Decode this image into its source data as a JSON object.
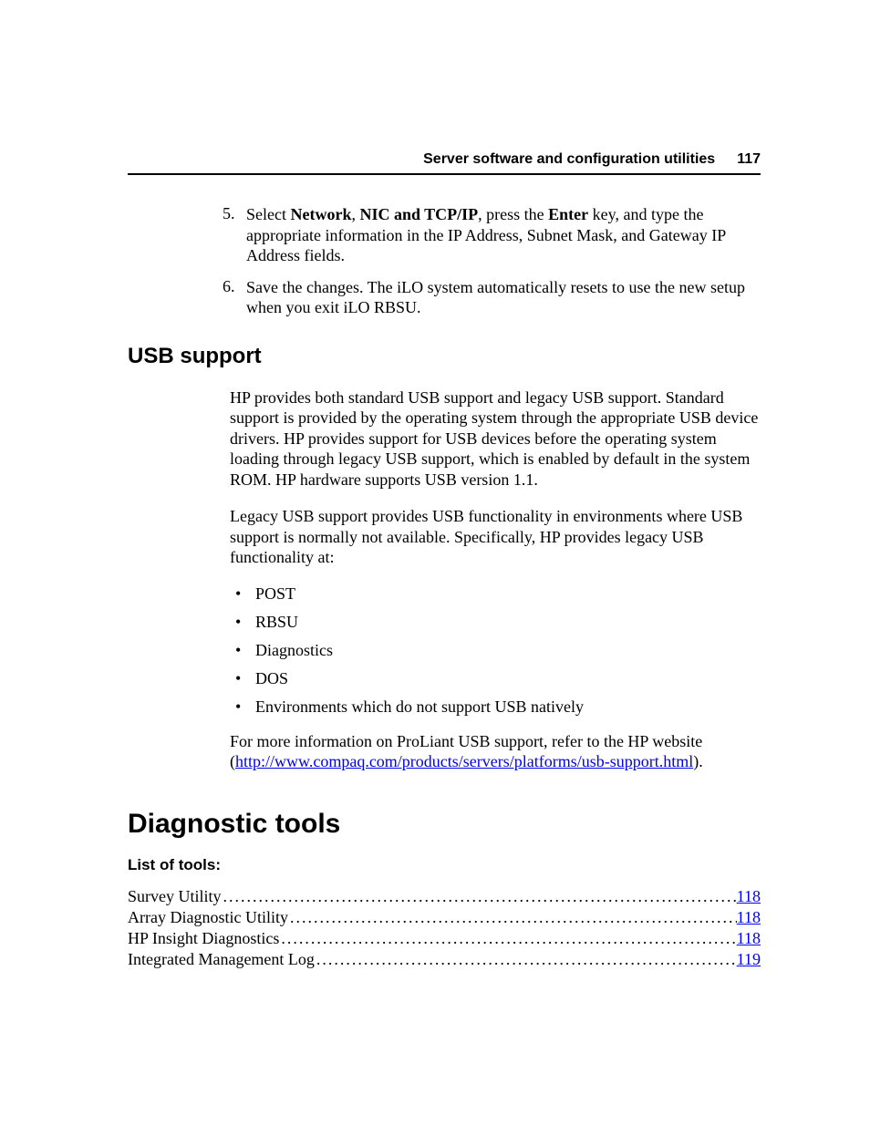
{
  "header": {
    "title": "Server software and configuration utilities",
    "page_number": "117"
  },
  "steps": [
    {
      "num": "5.",
      "pre": "Select ",
      "b1": "Network",
      "mid1": ", ",
      "b2": "NIC and TCP/IP",
      "mid2": ", press the ",
      "b3": "Enter",
      "post": " key, and type the appropriate information in the IP Address, Subnet Mask, and Gateway IP Address fields."
    },
    {
      "num": "6.",
      "text": "Save the changes. The iLO system automatically resets to use the new setup when you exit iLO RBSU."
    }
  ],
  "usb": {
    "heading": "USB support",
    "p1": "HP provides both standard USB support and legacy USB support. Standard support is provided by the operating system through the appropriate USB device drivers. HP provides support for USB devices before the operating system loading through legacy USB support, which is enabled by default in the system ROM. HP hardware supports USB version 1.1.",
    "p2": "Legacy USB support provides USB functionality in environments where USB support is normally not available. Specifically, HP provides legacy USB functionality at:",
    "bullets": [
      "POST",
      "RBSU",
      "Diagnostics",
      "DOS",
      "Environments which do not support USB natively"
    ],
    "p3_pre": "For more information on ProLiant USB support, refer to the HP website (",
    "p3_link": "http://www.compaq.com/products/servers/platforms/usb-support.html",
    "p3_post": ")."
  },
  "diag": {
    "heading": "Diagnostic tools",
    "subheading": "List of tools:",
    "toc": [
      {
        "label": "Survey Utility",
        "page": "118"
      },
      {
        "label": "Array Diagnostic Utility",
        "page": "118"
      },
      {
        "label": "HP Insight Diagnostics",
        "page": "118"
      },
      {
        "label": "Integrated Management Log",
        "page": "119"
      }
    ]
  },
  "colors": {
    "link": "#0000ee",
    "text": "#000000",
    "background": "#ffffff",
    "rule": "#000000"
  },
  "typography": {
    "body_font": "Times New Roman",
    "heading_font": "Arial",
    "body_size_pt": 12,
    "h1_size_pt": 20,
    "h2_size_pt": 16,
    "h3_size_pt": 11
  }
}
